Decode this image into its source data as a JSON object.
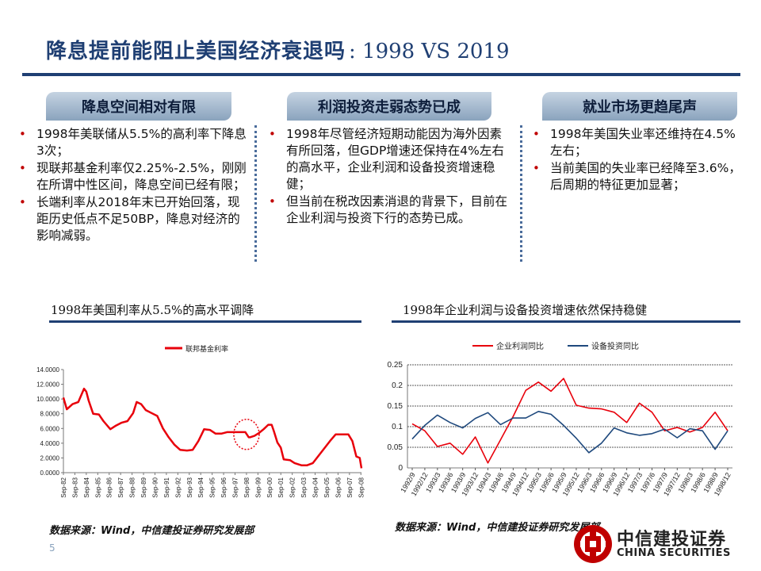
{
  "title": {
    "cn": "降息提前能阻止美国经济衰退吗",
    "en": ": 1998 VS 2019"
  },
  "columns": [
    {
      "badge": "降息空间相对有限",
      "bullets": [
        "1998年美联储从5.5%的高利率下降息3次；",
        "现联邦基金利率仅2.25%-2.5%，刚刚在所谓中性区间，降息空间已经有限；",
        "长端利率从2018年末已开始回落，现距历史低点不足50BP，降息对经济的影响减弱。"
      ]
    },
    {
      "badge": "利润投资走弱态势已成",
      "bullets": [
        "1998年尽管经济短期动能因为海外因素有所回落，但GDP增速还保持在4%左右的高水平，企业利润和设备投资增速稳健；",
        "但当前在税改因素消退的背景下，目前在企业利润与投资下行的态势已成。"
      ]
    },
    {
      "badge": "就业市场更趋尾声",
      "bullets": [
        "1998年美国失业率还维持在4.5%左右；",
        "当前美国的失业率已经降至3.6%，后周期的特征更加显著；"
      ]
    }
  ],
  "charts": {
    "left_title": "1998年美国利率从5.5%的高水平调降",
    "right_title": "1998年企业利润与设备投资增速依然保持稳健",
    "left_source": "数据来源：Wind，中信建投证券研究发展部",
    "right_source": "数据来源：Wind，中信建投证券研究发展部"
  },
  "chart_data": [
    {
      "type": "line",
      "title": "",
      "legend": [
        "联邦基金利率"
      ],
      "legend_position": "top",
      "ylim": [
        0,
        14
      ],
      "yticks": [
        "14.0000",
        "12.0000",
        "10.0000",
        "8.0000",
        "6.0000",
        "4.0000",
        "2.0000",
        "0.0000"
      ],
      "x_ticks": [
        "Sep-82",
        "Sep-83",
        "Sep-84",
        "Sep-85",
        "Sep-86",
        "Sep-87",
        "Sep-88",
        "Sep-89",
        "Sep-90",
        "Sep-91",
        "Sep-92",
        "Sep-93",
        "Sep-94",
        "Sep-95",
        "Sep-96",
        "Sep-97",
        "Sep-98",
        "Sep-99",
        "Sep-00",
        "Sep-01",
        "Sep-02",
        "Sep-03",
        "Sep-04",
        "Sep-05",
        "Sep-06",
        "Sep-07",
        "Sep-08"
      ],
      "grid": false,
      "series": [
        {
          "name": "联邦基金利率",
          "color": "#e8000b",
          "x": [
            1982.7,
            1983.0,
            1983.5,
            1984.0,
            1984.5,
            1984.7,
            1984.9,
            1985.3,
            1985.8,
            1986.2,
            1986.8,
            1987.3,
            1987.8,
            1988.3,
            1988.8,
            1989.1,
            1989.5,
            1989.9,
            1990.4,
            1990.9,
            1991.4,
            1991.9,
            1992.4,
            1992.9,
            1993.5,
            1994.0,
            1994.5,
            1995.0,
            1995.5,
            1996.0,
            1996.5,
            1997.0,
            1997.5,
            1998.0,
            1998.6,
            1998.9,
            1999.0,
            1999.4,
            1999.8,
            2000.2,
            2000.6,
            2000.9,
            2001.1,
            2001.4,
            2001.7,
            2001.95,
            2002.5,
            2002.9,
            2003.5,
            2004.0,
            2004.5,
            2005.0,
            2005.5,
            2006.0,
            2006.5,
            2007.0,
            2007.6,
            2007.95,
            2008.3,
            2008.6,
            2008.75
          ],
          "values": [
            10.2,
            8.6,
            9.3,
            9.6,
            11.4,
            11.0,
            9.8,
            8.0,
            7.9,
            7.0,
            5.9,
            6.4,
            6.8,
            7.0,
            8.1,
            9.6,
            9.3,
            8.5,
            8.1,
            7.7,
            6.0,
            4.8,
            3.8,
            3.1,
            3.0,
            3.1,
            4.3,
            5.9,
            5.8,
            5.3,
            5.3,
            5.5,
            5.5,
            5.5,
            5.5,
            4.8,
            4.8,
            5.0,
            5.4,
            5.9,
            6.5,
            6.5,
            5.6,
            4.1,
            3.4,
            1.8,
            1.7,
            1.3,
            1.0,
            1.0,
            1.3,
            2.3,
            3.3,
            4.3,
            5.2,
            5.2,
            5.2,
            4.3,
            2.2,
            2.0,
            0.6
          ]
        }
      ],
      "annotations": [
        "circle around 1998 cuts"
      ]
    },
    {
      "type": "line",
      "title": "",
      "legend": [
        "企业利润同比",
        "设备投资同比"
      ],
      "legend_position": "top",
      "ylim": [
        0,
        0.25
      ],
      "yticks": [
        "0.25",
        "0.2",
        "0.15",
        "0.1",
        "0.05",
        "0"
      ],
      "grid": true,
      "categories": [
        "1992/9",
        "1992/12",
        "1993/3",
        "1993/6",
        "1993/9",
        "1993/12",
        "1994/3",
        "1994/6",
        "1994/9",
        "1994/12",
        "1995/3",
        "1995/6",
        "1995/9",
        "1995/12",
        "1996/3",
        "1996/6",
        "1996/9",
        "1996/12",
        "1997/3",
        "1997/6",
        "1997/9",
        "1997/12",
        "1998/3",
        "1998/6",
        "1998/9",
        "1998/12"
      ],
      "series": [
        {
          "name": "企业利润同比",
          "color": "#e8000b",
          "values": [
            0.107,
            0.09,
            0.052,
            0.06,
            0.033,
            0.075,
            0.012,
            0.068,
            0.125,
            0.188,
            0.208,
            0.186,
            0.217,
            0.152,
            0.145,
            0.143,
            0.135,
            0.11,
            0.157,
            0.135,
            0.09,
            0.098,
            0.087,
            0.098,
            0.135,
            0.09
          ]
        },
        {
          "name": "设备投资同比",
          "color": "#1f497d",
          "values": [
            0.07,
            0.103,
            0.128,
            0.11,
            0.097,
            0.12,
            0.134,
            0.105,
            0.121,
            0.121,
            0.137,
            0.13,
            0.103,
            0.072,
            0.037,
            0.06,
            0.097,
            0.085,
            0.079,
            0.083,
            0.094,
            0.073,
            0.095,
            0.09,
            0.045,
            0.09
          ]
        }
      ]
    }
  ],
  "logo": {
    "cn": "中信建投证券",
    "en": "CHINA SECURITIES"
  },
  "page_number": "5"
}
